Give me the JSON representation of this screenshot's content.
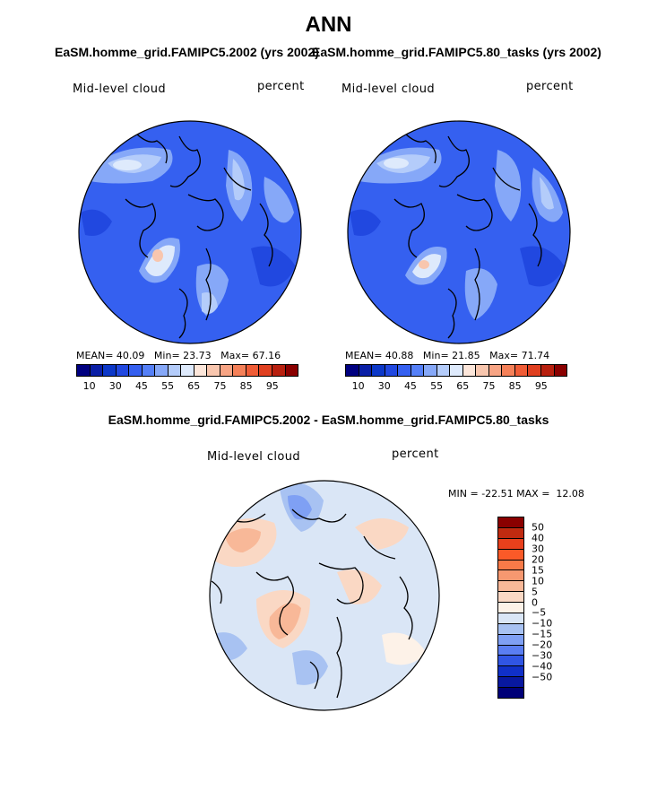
{
  "chart_data": [
    {
      "type": "polar-contour-map",
      "panel": "top-left",
      "title": "EaSM.homme_grid.FAMIPC5.2002 (yrs 2002)",
      "variable": "Mid-level cloud",
      "units": "percent",
      "stats": {
        "mean_label": "MEAN=",
        "mean": "40.09",
        "min_label": "Min=",
        "min": "23.73",
        "max_label": "Max=",
        "max": "67.16"
      },
      "colorbar_levels": [
        "10",
        "30",
        "45",
        "55",
        "65",
        "75",
        "85",
        "95"
      ],
      "colorbar_colors": [
        "#000080",
        "#0a1fa6",
        "#0c38c8",
        "#2148e0",
        "#3560f0",
        "#5580f8",
        "#86a8f8",
        "#b4ccfa",
        "#deeafc",
        "#fce6da",
        "#f8c6ae",
        "#f7a484",
        "#f58058",
        "#f05c36",
        "#e04020",
        "#b8200f",
        "#8a0000"
      ]
    },
    {
      "type": "polar-contour-map",
      "panel": "top-right",
      "title": "EaSM.homme_grid.FAMIPC5.80_tasks (yrs 2002)",
      "variable": "Mid-level cloud",
      "units": "percent",
      "stats": {
        "mean_label": "MEAN=",
        "mean": "40.88",
        "min_label": "Min=",
        "min": "21.85",
        "max_label": "Max=",
        "max": "71.74"
      },
      "colorbar_levels": [
        "10",
        "30",
        "45",
        "55",
        "65",
        "75",
        "85",
        "95"
      ],
      "colorbar_colors": [
        "#000080",
        "#0a1fa6",
        "#0c38c8",
        "#2148e0",
        "#3560f0",
        "#5580f8",
        "#86a8f8",
        "#b4ccfa",
        "#deeafc",
        "#fce6da",
        "#f8c6ae",
        "#f7a484",
        "#f58058",
        "#f05c36",
        "#e04020",
        "#b8200f",
        "#8a0000"
      ]
    },
    {
      "type": "polar-contour-map",
      "panel": "bottom-difference",
      "title": "EaSM.homme_grid.FAMIPC5.2002 - EaSM.homme_grid.FAMIPC5.80_tasks",
      "variable": "Mid-level cloud",
      "units": "percent",
      "stats": {
        "min_label": "MIN =",
        "min": "-22.51",
        "max_label": "MAX =",
        "max": "12.08"
      },
      "colorbar_levels": [
        "50",
        "40",
        "30",
        "20",
        "15",
        "10",
        "5",
        "0",
        "−5",
        "−10",
        "−15",
        "−20",
        "−30",
        "−40",
        "−50"
      ],
      "colorbar_colors": [
        "#8a0000",
        "#c02a10",
        "#e8401c",
        "#fa5a28",
        "#f87a48",
        "#f79870",
        "#f8b898",
        "#fad8c4",
        "#fdf2e8",
        "#dae6f6",
        "#a8c2f2",
        "#7fa0f4",
        "#5a7ef2",
        "#3055e4",
        "#1030c8",
        "#0818a0",
        "#000078"
      ]
    }
  ],
  "figure": {
    "title": "ANN"
  }
}
